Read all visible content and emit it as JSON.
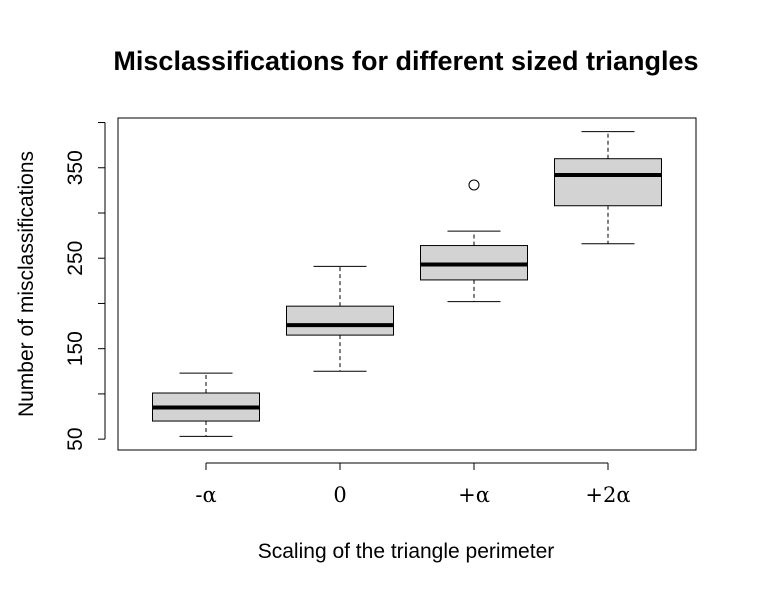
{
  "chart_data": {
    "type": "boxplot",
    "title": "Misclassifications for different sized triangles",
    "xlabel": "Scaling of the triangle perimeter",
    "ylabel": "Number of misclassifications",
    "categories": [
      "-α",
      "0",
      "+α",
      "+2α"
    ],
    "yticks": [
      50,
      150,
      250,
      350
    ],
    "ylim": [
      38,
      405
    ],
    "grid": false,
    "box_fill": "#d3d3d3",
    "boxes": [
      {
        "category": "-α",
        "whisker_low": 53,
        "q1": 70,
        "median": 85,
        "q3": 101,
        "whisker_high": 123,
        "outliers": []
      },
      {
        "category": "0",
        "whisker_low": 125,
        "q1": 165,
        "median": 176,
        "q3": 197,
        "whisker_high": 241,
        "outliers": []
      },
      {
        "category": "+α",
        "whisker_low": 202,
        "q1": 226,
        "median": 243,
        "q3": 264,
        "whisker_high": 280,
        "outliers": [
          331
        ]
      },
      {
        "category": "+2α",
        "whisker_low": 266,
        "q1": 308,
        "median": 342,
        "q3": 360,
        "whisker_high": 390,
        "outliers": []
      }
    ]
  }
}
